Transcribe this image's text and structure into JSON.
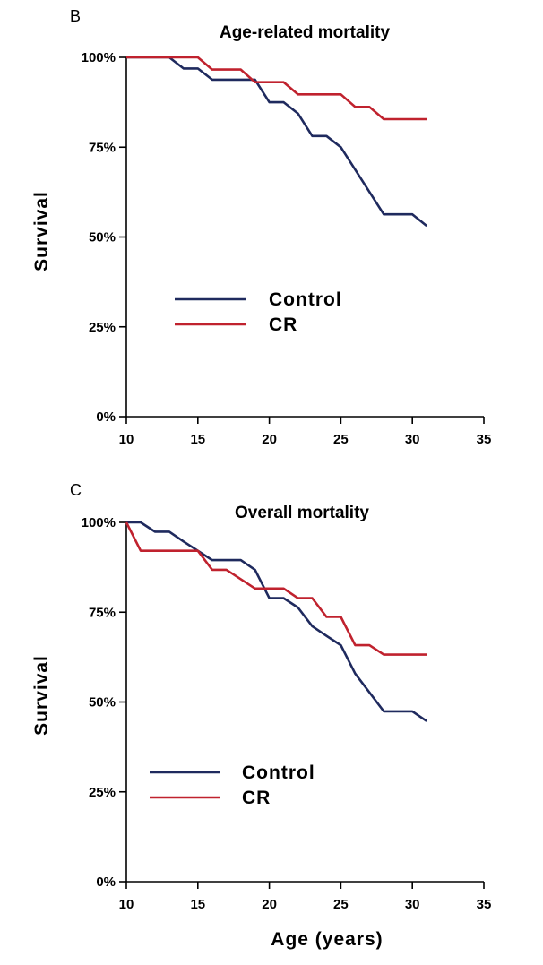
{
  "colors": {
    "control": "#1f2a5e",
    "cr": "#c0222e"
  },
  "chart_data": [
    {
      "type": "line",
      "panel_label": "B",
      "title": "Age-related mortality",
      "xlabel": "",
      "ylabel": "Survival",
      "xlim": [
        10,
        35
      ],
      "ylim": [
        0,
        100
      ],
      "xticks": [
        10,
        15,
        20,
        25,
        30,
        35
      ],
      "xtick_labels": [
        "10",
        "15",
        "20",
        "25",
        "30",
        "35"
      ],
      "yticks": [
        0,
        25,
        50,
        75,
        100
      ],
      "ytick_labels": [
        "0%",
        "25%",
        "50%",
        "75%",
        "100%"
      ],
      "legend": [
        {
          "name": "Control",
          "color_key": "control"
        },
        {
          "name": "CR",
          "color_key": "cr"
        }
      ],
      "series": [
        {
          "name": "Control",
          "color_key": "control",
          "x": [
            10,
            13,
            14,
            15,
            16,
            18,
            19,
            20,
            21,
            22,
            23,
            24,
            25,
            28,
            30,
            31
          ],
          "y": [
            100,
            100,
            96.9,
            96.9,
            93.8,
            93.8,
            93.8,
            87.5,
            87.5,
            84.4,
            78.1,
            78.1,
            75,
            56.3,
            56.3,
            53.1
          ]
        },
        {
          "name": "CR",
          "color_key": "cr",
          "x": [
            10,
            15,
            16,
            18,
            19,
            21,
            22,
            25,
            26,
            27,
            28,
            31
          ],
          "y": [
            100,
            100,
            96.6,
            96.6,
            93.1,
            93.1,
            89.7,
            89.7,
            86.2,
            86.2,
            82.8,
            82.8
          ]
        }
      ]
    },
    {
      "type": "line",
      "panel_label": "C",
      "title": "Overall mortality",
      "xlabel": "Age (years)",
      "ylabel": "Survival",
      "xlim": [
        10,
        35
      ],
      "ylim": [
        0,
        100
      ],
      "xticks": [
        10,
        15,
        20,
        25,
        30,
        35
      ],
      "xtick_labels": [
        "10",
        "15",
        "20",
        "25",
        "30",
        "35"
      ],
      "yticks": [
        0,
        25,
        50,
        75,
        100
      ],
      "ytick_labels": [
        "0%",
        "25%",
        "50%",
        "75%",
        "100%"
      ],
      "legend": [
        {
          "name": "Control",
          "color_key": "control"
        },
        {
          "name": "CR",
          "color_key": "cr"
        }
      ],
      "series": [
        {
          "name": "Control",
          "color_key": "control",
          "x": [
            10,
            11,
            12,
            13,
            14,
            15,
            16,
            17,
            18,
            19,
            20,
            21,
            22,
            23,
            24,
            25,
            26,
            28,
            30,
            31
          ],
          "y": [
            100,
            100,
            97.4,
            97.4,
            94.7,
            92.1,
            89.5,
            89.5,
            89.5,
            86.8,
            78.9,
            78.9,
            76.3,
            71.1,
            68.4,
            65.8,
            57.9,
            47.4,
            47.4,
            44.7
          ]
        },
        {
          "name": "CR",
          "color_key": "cr",
          "x": [
            10,
            11,
            15,
            16,
            17,
            19,
            21,
            22,
            23,
            24,
            25,
            26,
            27,
            28,
            31
          ],
          "y": [
            100,
            92.1,
            92.1,
            86.8,
            86.8,
            81.6,
            81.6,
            78.9,
            78.9,
            73.7,
            73.7,
            65.8,
            65.8,
            63.2,
            63.2
          ]
        }
      ]
    }
  ]
}
